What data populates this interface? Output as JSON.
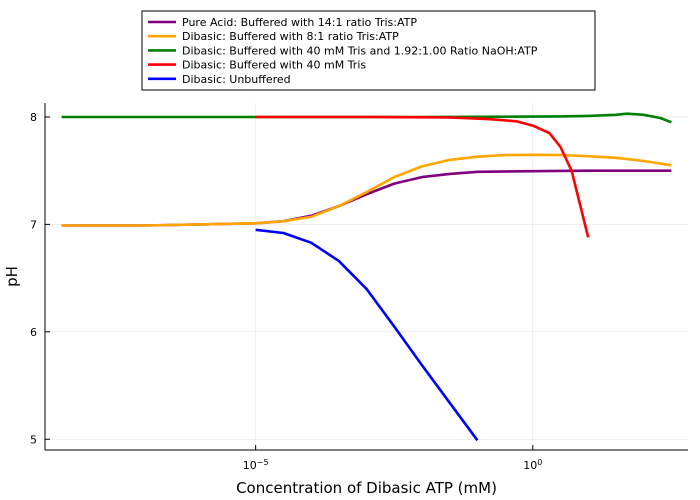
{
  "chart_data": {
    "type": "line",
    "xlabel": "Concentration of Dibasic ATP (mM)",
    "ylabel": "pH",
    "xscale": "log10",
    "xlim_log10": [
      -8.8,
      2.8
    ],
    "ylim": [
      4.9,
      8.13
    ],
    "x_ticks": [
      {
        "log10": -5,
        "base": "10",
        "exp": "−5"
      },
      {
        "log10": 0,
        "base": "10",
        "exp": "0"
      }
    ],
    "y_ticks": [
      5,
      6,
      7,
      8
    ],
    "grid": true,
    "legend_position": "top",
    "series": [
      {
        "name": "Pure Acid: Buffered with 14:1 ratio Tris:ATP",
        "color": "#800080",
        "points_log10x": [
          [
            -8.5,
            6.99
          ],
          [
            -7,
            6.99
          ],
          [
            -6,
            7.0
          ],
          [
            -5,
            7.01
          ],
          [
            -4.5,
            7.03
          ],
          [
            -4,
            7.08
          ],
          [
            -3.5,
            7.17
          ],
          [
            -3,
            7.28
          ],
          [
            -2.5,
            7.38
          ],
          [
            -2,
            7.44
          ],
          [
            -1.5,
            7.47
          ],
          [
            -1,
            7.49
          ],
          [
            0,
            7.495
          ],
          [
            1,
            7.5
          ],
          [
            2.5,
            7.5
          ]
        ]
      },
      {
        "name": "Dibasic: Buffered with 8:1 ratio Tris:ATP",
        "color": "#FFA500",
        "points_log10x": [
          [
            -8.5,
            6.99
          ],
          [
            -7,
            6.99
          ],
          [
            -6,
            7.0
          ],
          [
            -5,
            7.01
          ],
          [
            -4.5,
            7.03
          ],
          [
            -4,
            7.07
          ],
          [
            -3.5,
            7.17
          ],
          [
            -3,
            7.3
          ],
          [
            -2.5,
            7.44
          ],
          [
            -2,
            7.54
          ],
          [
            -1.5,
            7.6
          ],
          [
            -1,
            7.63
          ],
          [
            -0.5,
            7.645
          ],
          [
            0,
            7.648
          ],
          [
            0.5,
            7.645
          ],
          [
            1,
            7.635
          ],
          [
            1.5,
            7.62
          ],
          [
            2,
            7.59
          ],
          [
            2.5,
            7.55
          ]
        ]
      },
      {
        "name": "Dibasic: Buffered  with 40 mM Tris and 1.92:1.00 Ratio NaOH:ATP",
        "color": "#008000",
        "points_log10x": [
          [
            -8.5,
            8.0
          ],
          [
            -5,
            8.0
          ],
          [
            -2,
            8.0
          ],
          [
            0,
            8.003
          ],
          [
            0.5,
            8.005
          ],
          [
            1,
            8.01
          ],
          [
            1.5,
            8.02
          ],
          [
            1.7,
            8.03
          ],
          [
            2.0,
            8.02
          ],
          [
            2.3,
            7.99
          ],
          [
            2.5,
            7.95
          ]
        ]
      },
      {
        "name": "Dibasic: Buffered with 40 mM Tris",
        "color": "#FF0000",
        "points_log10x": [
          [
            -5,
            8.0
          ],
          [
            -3,
            8.0
          ],
          [
            -1.5,
            7.995
          ],
          [
            -0.8,
            7.98
          ],
          [
            -0.3,
            7.96
          ],
          [
            0,
            7.92
          ],
          [
            0.3,
            7.85
          ],
          [
            0.5,
            7.72
          ],
          [
            0.7,
            7.5
          ],
          [
            1.0,
            6.88
          ]
        ]
      },
      {
        "name": "Dibasic: Unbuffered",
        "color": "#0000FF",
        "points_log10x": [
          [
            -5,
            6.95
          ],
          [
            -4.5,
            6.92
          ],
          [
            -4,
            6.83
          ],
          [
            -3.5,
            6.66
          ],
          [
            -3,
            6.4
          ],
          [
            -2.5,
            6.05
          ],
          [
            -2,
            5.69
          ],
          [
            -1.5,
            5.34
          ],
          [
            -1,
            4.99
          ]
        ]
      }
    ]
  }
}
